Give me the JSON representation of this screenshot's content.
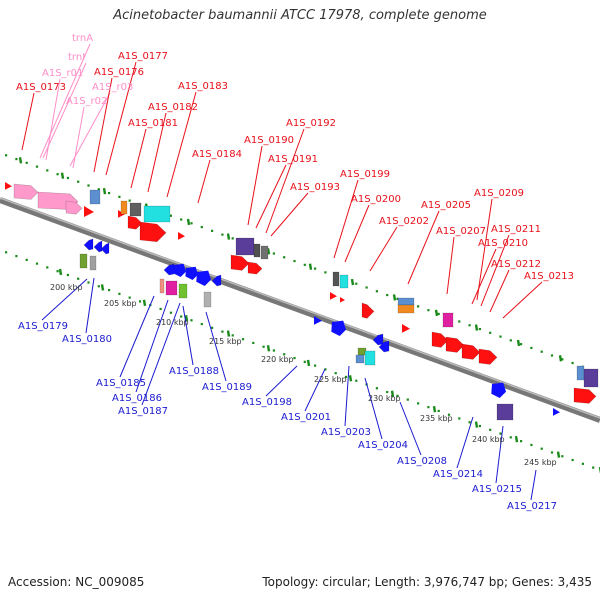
{
  "title": "Acinetobacter baumannii ATCC 17978, complete genome",
  "footer": {
    "accession": "Accession: NC_009085",
    "summary": "Topology: circular; Length: 3,976,747 bp; Genes: 3,435"
  },
  "colors": {
    "forward_label": "#e8101a",
    "reverse_label": "#1a1ad0",
    "rna_label": "#ff8ec8",
    "backbone": "#888888",
    "dot_track": "#1a8a1a"
  },
  "scale_ticks": [
    "200 kbp",
    "205 kbp",
    "210 kbp",
    "215 kbp",
    "220 kbp",
    "225 kbp",
    "230 kbp",
    "235 kbp",
    "240 kbp",
    "245 kbp"
  ],
  "top_labels": [
    {
      "text": "trnA",
      "type": "rna"
    },
    {
      "text": "trnI",
      "type": "rna"
    },
    {
      "text": "A1S_r01",
      "type": "rna"
    },
    {
      "text": "A1S_r03",
      "type": "rna"
    },
    {
      "text": "A1S_r02",
      "type": "rna"
    },
    {
      "text": "A1S_0173",
      "type": "forward"
    },
    {
      "text": "A1S_0176",
      "type": "forward"
    },
    {
      "text": "A1S_0177",
      "type": "forward"
    },
    {
      "text": "A1S_0181",
      "type": "forward"
    },
    {
      "text": "A1S_0182",
      "type": "forward"
    },
    {
      "text": "A1S_0183",
      "type": "forward"
    },
    {
      "text": "A1S_0184",
      "type": "forward"
    },
    {
      "text": "A1S_0190",
      "type": "forward"
    },
    {
      "text": "A1S_0191",
      "type": "forward"
    },
    {
      "text": "A1S_0192",
      "type": "forward"
    },
    {
      "text": "A1S_0193",
      "type": "forward"
    },
    {
      "text": "A1S_0199",
      "type": "forward"
    },
    {
      "text": "A1S_0200",
      "type": "forward"
    },
    {
      "text": "A1S_0202",
      "type": "forward"
    },
    {
      "text": "A1S_0205",
      "type": "forward"
    },
    {
      "text": "A1S_0207",
      "type": "forward"
    },
    {
      "text": "A1S_0209",
      "type": "forward"
    },
    {
      "text": "A1S_0210",
      "type": "forward"
    },
    {
      "text": "A1S_0211",
      "type": "forward"
    },
    {
      "text": "A1S_0212",
      "type": "forward"
    },
    {
      "text": "A1S_0213",
      "type": "forward"
    }
  ],
  "bottom_labels": [
    {
      "text": "A1S_0179"
    },
    {
      "text": "A1S_0180"
    },
    {
      "text": "A1S_0185"
    },
    {
      "text": "A1S_0186"
    },
    {
      "text": "A1S_0187"
    },
    {
      "text": "A1S_0188"
    },
    {
      "text": "A1S_0189"
    },
    {
      "text": "A1S_0198"
    },
    {
      "text": "A1S_0201"
    },
    {
      "text": "A1S_0203"
    },
    {
      "text": "A1S_0204"
    },
    {
      "text": "A1S_0208"
    },
    {
      "text": "A1S_0214"
    },
    {
      "text": "A1S_0215"
    },
    {
      "text": "A1S_0217"
    }
  ]
}
